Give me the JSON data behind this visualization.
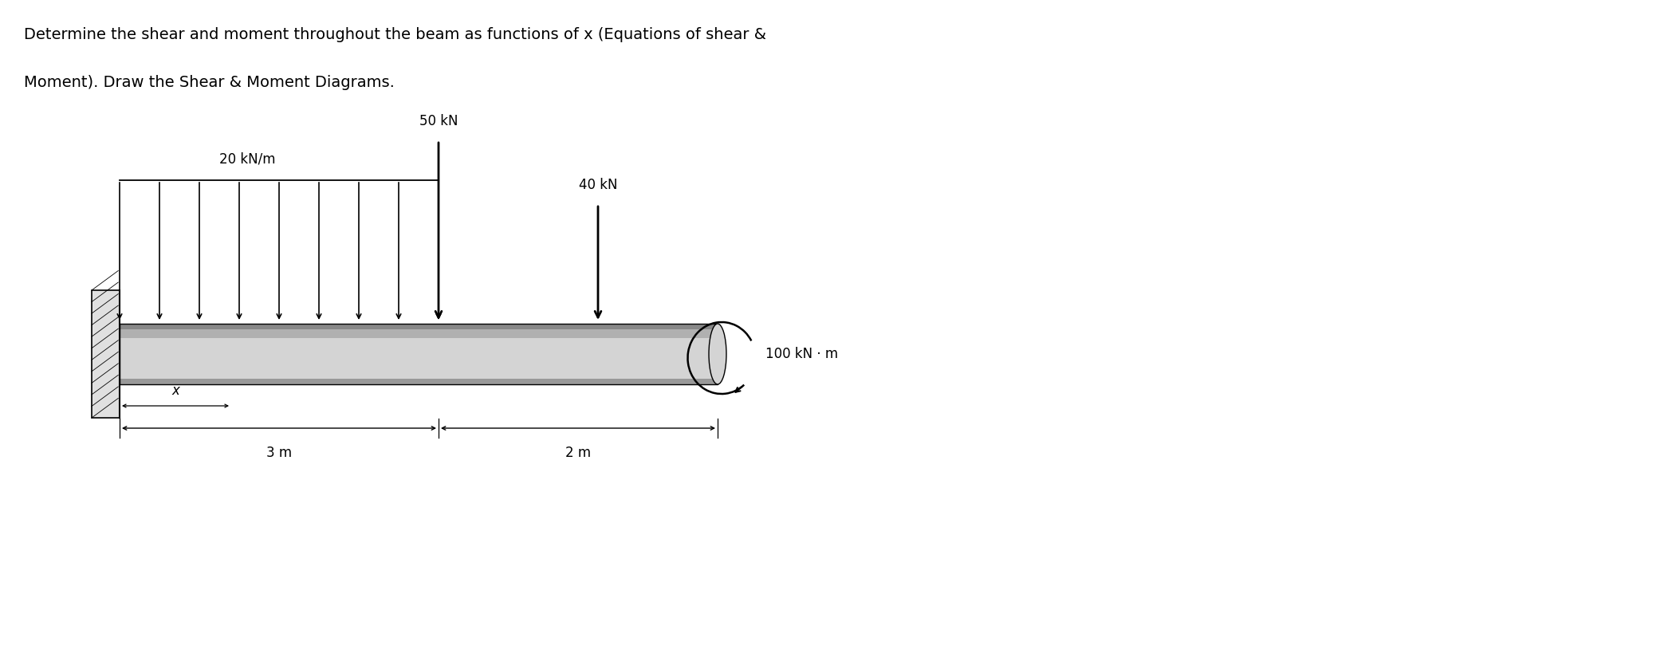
{
  "title_line1": "Determine the shear and moment throughout the beam as functions of x (Equations of shear &",
  "title_line2": "Moment). Draw the Shear & Moment Diagrams.",
  "title_fontsize": 14,
  "background_color": "#ffffff",
  "label_fontsize": 12,
  "dist_load_label": "20 kN/m",
  "point_load_50_label": "50 kN",
  "point_load_40_label": "40 kN",
  "moment_label": "100 kN · m",
  "dim_3m_label": "3 m",
  "dim_2m_label": "2 m",
  "x_label": "x"
}
